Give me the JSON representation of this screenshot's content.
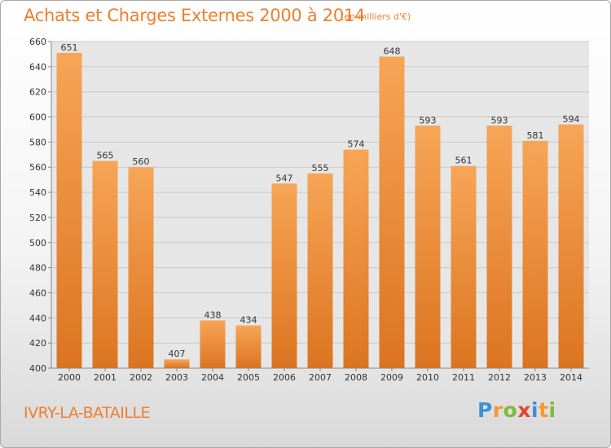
{
  "header": {
    "title": "Achats et Charges Externes 2000 à 2014",
    "subtitle": "(en milliers d'€)"
  },
  "footer": {
    "commune": "IVRY-LA-BATAILLE",
    "logo_text": "Proxiti",
    "logo_letters": [
      {
        "ch": "P",
        "color": "#3d8fd6"
      },
      {
        "ch": "r",
        "color": "#f29a2e"
      },
      {
        "ch": "o",
        "color": "#7fb93e"
      },
      {
        "ch": "x",
        "color": "#e4442b"
      },
      {
        "ch": "i",
        "color": "#3d8fd6"
      },
      {
        "ch": "t",
        "color": "#f29a2e"
      },
      {
        "ch": "i",
        "color": "#7fb93e"
      }
    ]
  },
  "colors": {
    "accent": "#ee7f2d",
    "bar_top": "#f6a556",
    "bar_bottom": "#dc7420",
    "grid": "#c8c8c8",
    "plot_bg": "#e6e6e6"
  },
  "chart_data": {
    "type": "bar",
    "title": "Achats et Charges Externes 2000 à 2014",
    "subtitle": "(en milliers d'€)",
    "categories": [
      "2000",
      "2001",
      "2002",
      "2003",
      "2004",
      "2005",
      "2006",
      "2007",
      "2008",
      "2009",
      "2010",
      "2011",
      "2012",
      "2013",
      "2014"
    ],
    "values": [
      651,
      565,
      560,
      407,
      438,
      434,
      547,
      555,
      574,
      648,
      593,
      561,
      593,
      581,
      594
    ],
    "yticks": [
      400,
      420,
      440,
      460,
      480,
      500,
      520,
      540,
      560,
      580,
      600,
      620,
      640,
      660
    ],
    "ylim": [
      400,
      660
    ],
    "grid": true,
    "xlabel": "",
    "ylabel": ""
  }
}
